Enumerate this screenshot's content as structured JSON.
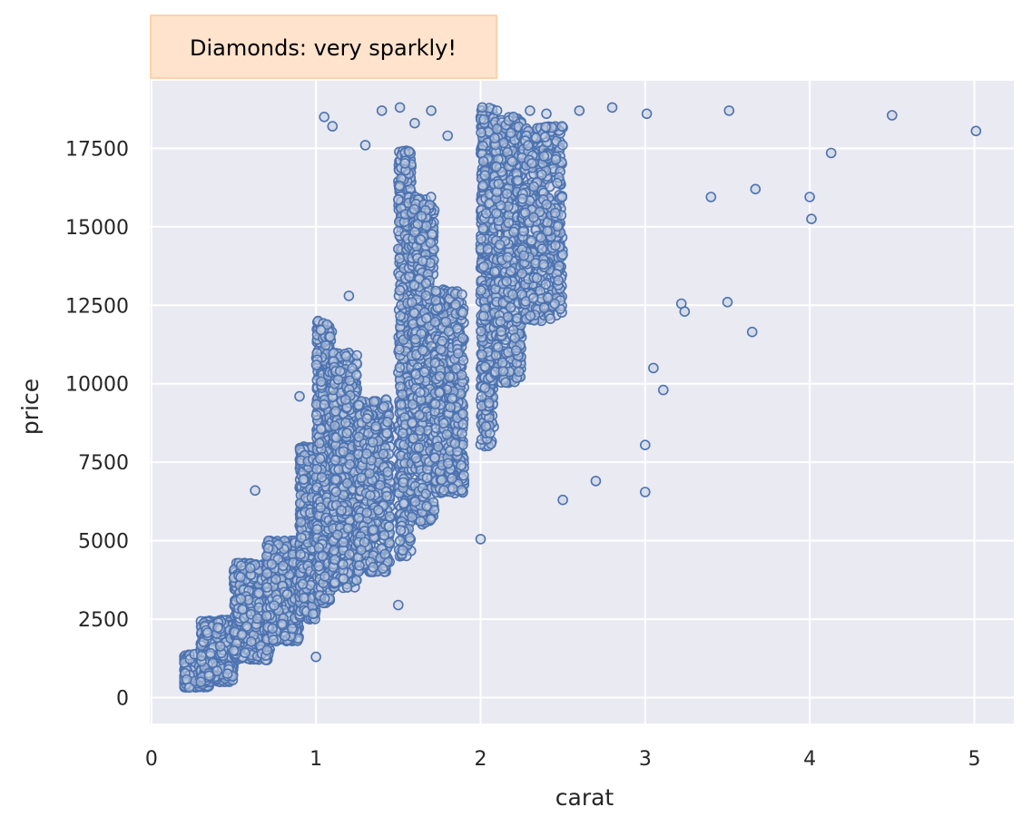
{
  "colors": {
    "plot_background": "#eaeaf2",
    "grid": "#ffffff",
    "marker_edge": "#4c72b0",
    "marker_fill": "#c2cde0",
    "annotation_fill": "#ffe3cc",
    "annotation_edge": "#ffd2a9"
  },
  "chart_data": {
    "type": "scatter",
    "annotation": "Diamonds: very sparkly!",
    "xlabel": "carat",
    "ylabel": "price",
    "xlim": [
      -0.01,
      5.24
    ],
    "ylim": [
      -823,
      19650
    ],
    "x_ticks": [
      0,
      1,
      2,
      3,
      4,
      5
    ],
    "y_ticks": [
      0,
      2500,
      5000,
      7500,
      10000,
      12500,
      15000,
      17500
    ],
    "grid": true,
    "points": [
      [
        0.23,
        326
      ],
      [
        0.3,
        500
      ],
      [
        0.35,
        700
      ],
      [
        0.4,
        850
      ],
      [
        0.5,
        1500
      ],
      [
        0.55,
        2000
      ],
      [
        0.63,
        6600
      ],
      [
        0.7,
        2600
      ],
      [
        0.8,
        4200
      ],
      [
        0.9,
        9600
      ],
      [
        1.0,
        1300
      ],
      [
        1.05,
        18500
      ],
      [
        1.1,
        18200
      ],
      [
        1.2,
        12800
      ],
      [
        1.3,
        17600
      ],
      [
        1.4,
        18700
      ],
      [
        1.5,
        2950
      ],
      [
        1.51,
        18800
      ],
      [
        1.6,
        18300
      ],
      [
        1.7,
        18700
      ],
      [
        1.8,
        17900
      ],
      [
        2.0,
        5050
      ],
      [
        2.01,
        18800
      ],
      [
        2.1,
        18700
      ],
      [
        2.2,
        18500
      ],
      [
        2.3,
        18700
      ],
      [
        2.4,
        18600
      ],
      [
        2.5,
        6300
      ],
      [
        2.6,
        18700
      ],
      [
        2.7,
        6900
      ],
      [
        2.8,
        18800
      ],
      [
        3.0,
        6550
      ],
      [
        3.0,
        8050
      ],
      [
        3.01,
        18600
      ],
      [
        3.05,
        10500
      ],
      [
        3.11,
        9800
      ],
      [
        3.22,
        12550
      ],
      [
        3.24,
        12300
      ],
      [
        3.4,
        15950
      ],
      [
        3.5,
        12600
      ],
      [
        3.51,
        18700
      ],
      [
        3.65,
        11650
      ],
      [
        3.67,
        16200
      ],
      [
        4.0,
        15950
      ],
      [
        4.01,
        15250
      ],
      [
        4.13,
        17350
      ],
      [
        4.5,
        18550
      ],
      [
        5.01,
        18050
      ]
    ],
    "dense_bands": [
      {
        "x": [
          0.2,
          0.35
        ],
        "y": [
          326,
          1400
        ]
      },
      {
        "x": [
          0.3,
          0.5
        ],
        "y": [
          500,
          2500
        ]
      },
      {
        "x": [
          0.5,
          0.72
        ],
        "y": [
          1200,
          4300
        ]
      },
      {
        "x": [
          0.7,
          0.9
        ],
        "y": [
          1800,
          5000
        ]
      },
      {
        "x": [
          0.9,
          1.0
        ],
        "y": [
          2500,
          8000
        ]
      },
      {
        "x": [
          1.0,
          1.1
        ],
        "y": [
          3000,
          12000
        ]
      },
      {
        "x": [
          1.1,
          1.25
        ],
        "y": [
          3500,
          11000
        ]
      },
      {
        "x": [
          1.25,
          1.45
        ],
        "y": [
          4000,
          9500
        ]
      },
      {
        "x": [
          1.5,
          1.58
        ],
        "y": [
          4500,
          17500
        ]
      },
      {
        "x": [
          1.58,
          1.72
        ],
        "y": [
          5500,
          16000
        ]
      },
      {
        "x": [
          1.72,
          1.9
        ],
        "y": [
          6500,
          13000
        ]
      },
      {
        "x": [
          2.0,
          2.08
        ],
        "y": [
          8000,
          18800
        ]
      },
      {
        "x": [
          2.08,
          2.25
        ],
        "y": [
          10000,
          18500
        ]
      },
      {
        "x": [
          2.25,
          2.5
        ],
        "y": [
          12000,
          18200
        ]
      }
    ]
  }
}
